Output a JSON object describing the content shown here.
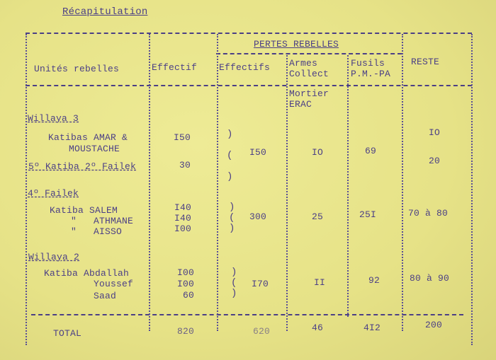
{
  "title": "Récapitulation",
  "header": {
    "group": "PERTES REBELLES",
    "units": "Unités rebelles",
    "effectif": "Effectif",
    "effectifs": "Effectifs",
    "armes_1": "Armes",
    "armes_2": "Collect",
    "armes_3": "Mortier",
    "armes_4": "ERAC",
    "fusils_1": "Fusils",
    "fusils_2": "P.M.-PA",
    "reste": "RESTE"
  },
  "groups": [
    {
      "name": "Willaya 3",
      "rows": [
        {
          "unit_1": "Katibas AMAR &",
          "unit_2": "MOUSTACHE",
          "effectif": "I50"
        },
        {
          "unit": "5º Katiba 2º Failek",
          "effectif": "30"
        }
      ],
      "effectifs": "I50",
      "armes": "IO",
      "fusils": "69",
      "reste_1": "IO",
      "reste_2": "20"
    },
    {
      "name": "4º Failek",
      "rows": [
        {
          "unit": "Katiba SALEM",
          "effectif": "I40"
        },
        {
          "unit": "\"   ATHMANE",
          "effectif": "I40"
        },
        {
          "unit": "\"   AISSO",
          "effectif": "I00"
        }
      ],
      "effectifs": "300",
      "armes": "25",
      "fusils": "25I",
      "reste": "70 à 80"
    },
    {
      "name": "Willaya 2",
      "rows": [
        {
          "unit": "Katiba Abdallah",
          "effectif": "I00"
        },
        {
          "unit": "Youssef",
          "effectif": "I00"
        },
        {
          "unit": "Saad",
          "effectif": "60"
        }
      ],
      "effectifs": "I70",
      "armes": "II",
      "fusils": "92",
      "reste": "80 à 90"
    }
  ],
  "total": {
    "label": "TOTAL",
    "effectif": "820",
    "effectifs": "620",
    "armes": "46",
    "fusils": "4I2",
    "reste": "200"
  },
  "colors": {
    "paper": "#e6e287",
    "ink": "#4b3f86"
  }
}
